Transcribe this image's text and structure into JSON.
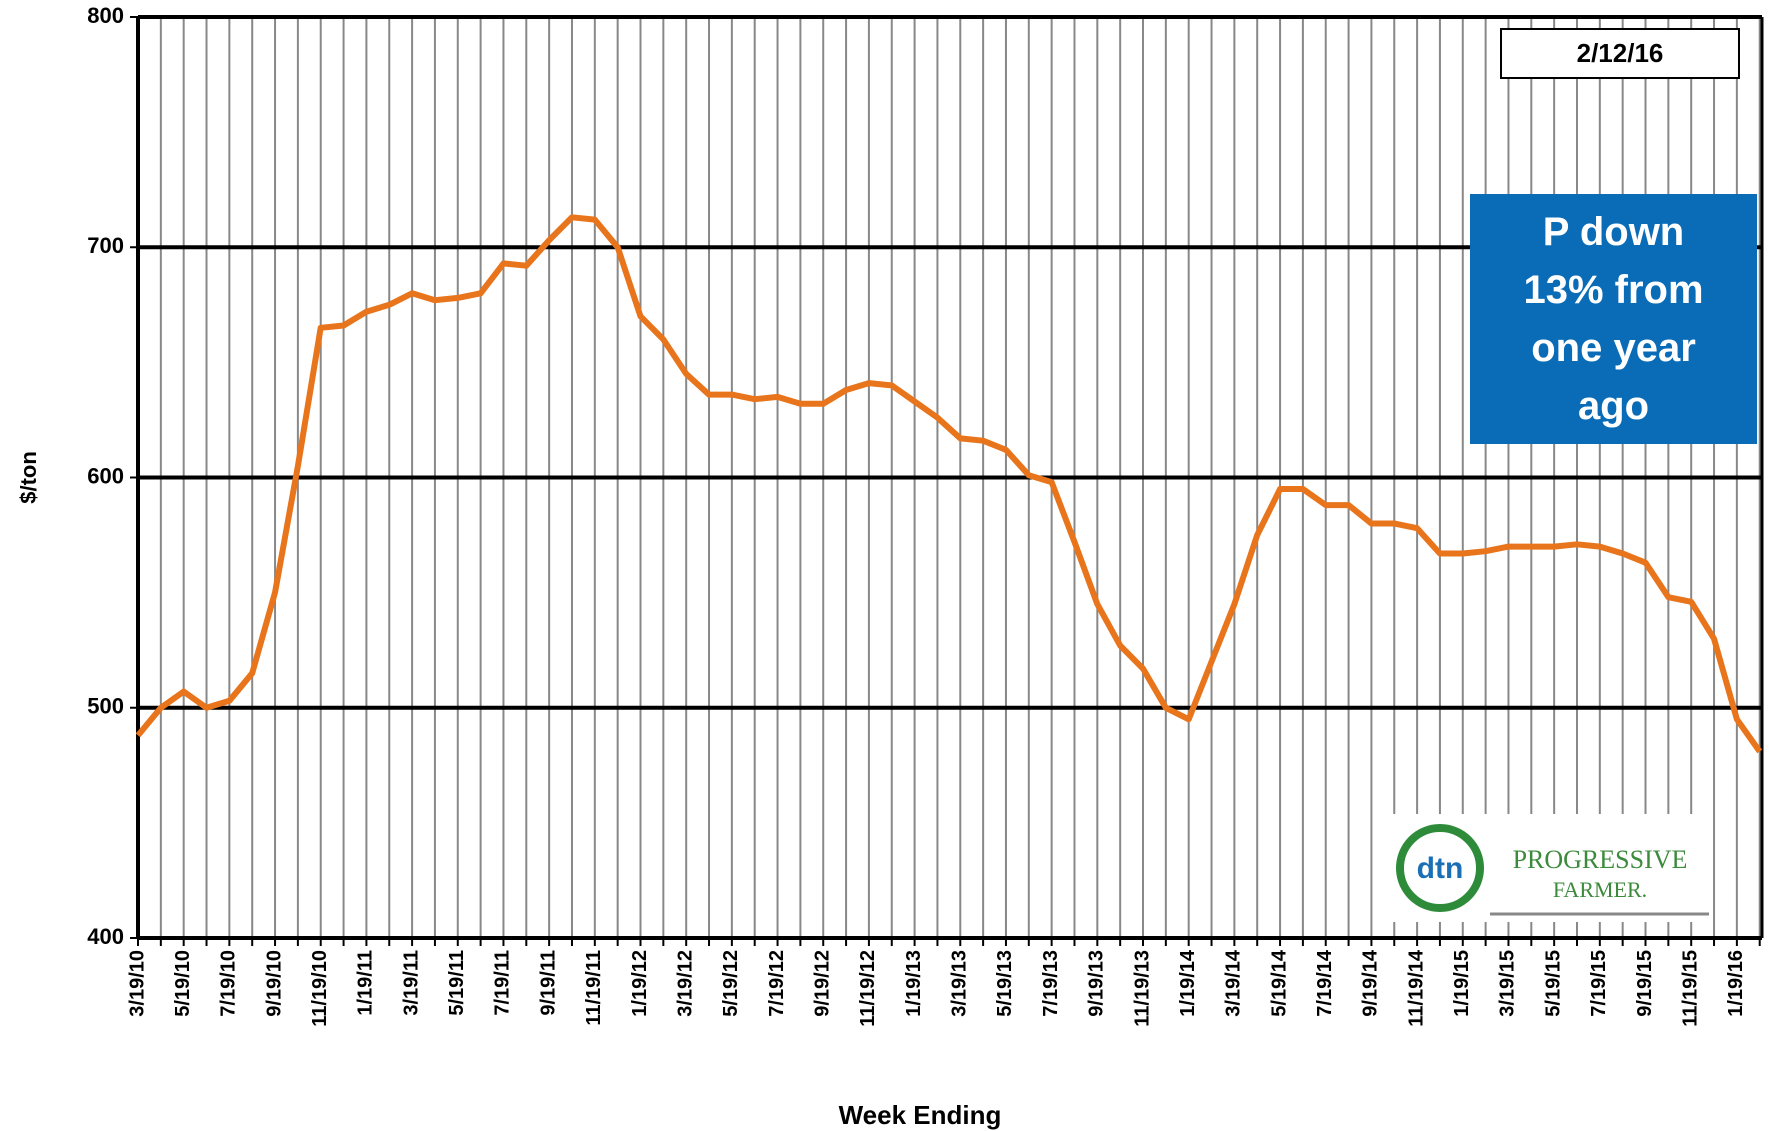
{
  "chart_data": {
    "type": "line",
    "y_label": "$/ton",
    "x_label": "Week Ending",
    "date_box": "2/12/16",
    "annotation": "P down 13% from one year ago",
    "logo_text": [
      "dtn",
      "PROGRESSIVE",
      "FARMER."
    ],
    "categories": [
      "3/19/10",
      null,
      "5/19/10",
      null,
      "7/19/10",
      null,
      "9/19/10",
      null,
      "11/19/10",
      null,
      "1/19/11",
      null,
      "3/19/11",
      null,
      "5/19/11",
      null,
      "7/19/11",
      null,
      "9/19/11",
      null,
      "11/19/11",
      null,
      "1/19/12",
      null,
      "3/19/12",
      null,
      "5/19/12",
      null,
      "7/19/12",
      null,
      "9/19/12",
      null,
      "11/19/12",
      null,
      "1/19/13",
      null,
      "3/19/13",
      null,
      "5/19/13",
      null,
      "7/19/13",
      null,
      "9/19/13",
      null,
      "11/19/13",
      null,
      "1/19/14",
      null,
      "3/19/14",
      null,
      "5/19/14",
      null,
      "7/19/14",
      null,
      "9/19/14",
      null,
      "11/19/14",
      null,
      "1/19/15",
      null,
      "3/19/15",
      null,
      "5/19/15",
      null,
      "7/19/15",
      null,
      "9/19/15",
      null,
      "11/19/15",
      null,
      "1/19/16",
      null
    ],
    "values": [
      488,
      500,
      507,
      500,
      503,
      515,
      550,
      605,
      665,
      666,
      672,
      675,
      680,
      677,
      678,
      680,
      693,
      692,
      703,
      713,
      712,
      700,
      670,
      660,
      645,
      636,
      636,
      634,
      635,
      632,
      632,
      638,
      641,
      640,
      633,
      626,
      617,
      616,
      612,
      601,
      598,
      572,
      545,
      527,
      517,
      500,
      495,
      520,
      545,
      575,
      595,
      595,
      588,
      588,
      580,
      580,
      578,
      567,
      567,
      568,
      570,
      570,
      570,
      571,
      570,
      567,
      563,
      548,
      546,
      530,
      495,
      481
    ],
    "color": "#e8741c",
    "ylim": [
      400,
      800
    ],
    "yticks": [
      400,
      500,
      600,
      700,
      800
    ],
    "grid": true
  }
}
